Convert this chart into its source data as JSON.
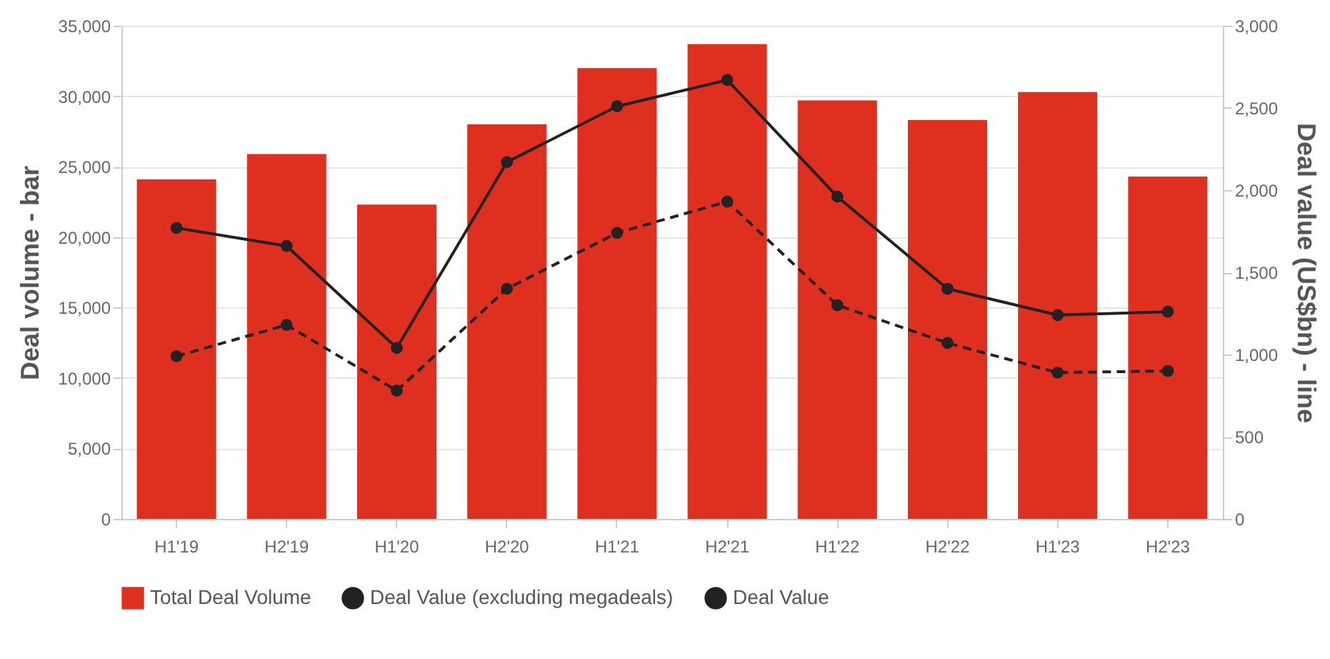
{
  "chart_data": {
    "type": "bar",
    "categories": [
      "H1'19",
      "H2'19",
      "H1'20",
      "H2'20",
      "H1'21",
      "H2'21",
      "H1'22",
      "H2'22",
      "H1'23",
      "H2'23"
    ],
    "ylabel": "Deal volume - bar",
    "y2label": "Deal value (US$bn) - line",
    "ylim": [
      0,
      35000
    ],
    "yticks": [
      0,
      {
        "value": 5000,
        "label": "5,000"
      },
      {
        "value": 10000,
        "label": "10,000"
      },
      {
        "value": 15000,
        "label": "15,000"
      },
      {
        "value": 20000,
        "label": "20,000"
      },
      {
        "value": 25000,
        "label": "25,000"
      },
      {
        "value": 30000,
        "label": "30,000"
      },
      {
        "value": 35000,
        "label": "35,000"
      }
    ],
    "y2lim": [
      0,
      3000
    ],
    "y2ticks": [
      0,
      500,
      {
        "value": 1000,
        "label": "1,000"
      },
      {
        "value": 1500,
        "label": "1,500"
      },
      {
        "value": 2000,
        "label": "2,000"
      },
      {
        "value": 2500,
        "label": "2,500"
      },
      {
        "value": 3000,
        "label": "3,000"
      }
    ],
    "grid": "y",
    "legend": "bottom",
    "series": [
      {
        "name": "Total Deal Volume",
        "color": "#de2f1f",
        "values": [
          24100,
          25900,
          22300,
          28000,
          32000,
          33700,
          29700,
          28300,
          30300,
          24300
        ]
      },
      {
        "name": "Deal Value (excluding megadeals)",
        "type": "line",
        "axis": "y2",
        "color": "#222222",
        "line_style": "dashed",
        "marker": "circle",
        "values": [
          990,
          1180,
          780,
          1400,
          1740,
          1930,
          1300,
          1070,
          890,
          900
        ]
      },
      {
        "name": "Deal Value",
        "type": "line",
        "axis": "y2",
        "color": "#222222",
        "line_style": "solid",
        "marker": "circle",
        "values": [
          1770,
          1660,
          1040,
          2170,
          2510,
          2670,
          1960,
          1400,
          1240,
          1260
        ]
      }
    ]
  }
}
